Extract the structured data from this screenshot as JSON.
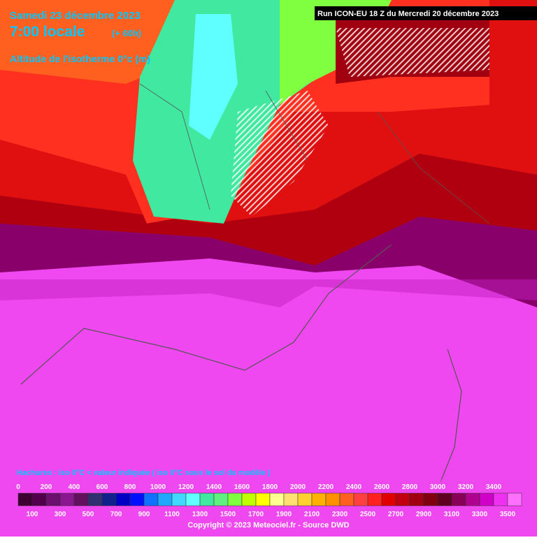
{
  "header": {
    "date": "Samedi 23 décembre 2023",
    "time": "7:00 locale",
    "lead": "(+ 60h)",
    "variable": "Altitude de l'isotherme 0°c (m)"
  },
  "run": "Run ICON-EU 18 Z du Mercredi 20 décembre 2023",
  "hatch_note": "Hachures : iso 0°C < valeur indiquée ( iso 0°C sous le sol du modèle )",
  "copyright": "Copyright © 2023 Meteociel.fr - Source DWD",
  "scale": {
    "labels_top": [
      0,
      200,
      400,
      600,
      800,
      1000,
      1200,
      1400,
      1600,
      1800,
      2000,
      2200,
      2400,
      2600,
      2800,
      3000,
      3200,
      3400
    ],
    "labels_bottom": [
      100,
      300,
      500,
      700,
      900,
      1100,
      1300,
      1500,
      1700,
      1900,
      2100,
      2300,
      2500,
      2700,
      2900,
      3100,
      3300,
      3500
    ],
    "colors": [
      "#3c0032",
      "#52004c",
      "#6c1070",
      "#8a1690",
      "#64105e",
      "#303070",
      "#10208c",
      "#0000c4",
      "#0010ff",
      "#1070ff",
      "#20a8ff",
      "#40d8ff",
      "#60ffff",
      "#40e8a0",
      "#60f080",
      "#80ff40",
      "#c0ff00",
      "#ffff00",
      "#ffff90",
      "#ffe070",
      "#ffd030",
      "#ffb000",
      "#ff9000",
      "#ff6020",
      "#ff4040",
      "#ff2020",
      "#e00000",
      "#c00010",
      "#a00010",
      "#800010",
      "#60001e",
      "#880058",
      "#b00090",
      "#d000c8",
      "#f030f0",
      "#ff70ff"
    ]
  }
}
